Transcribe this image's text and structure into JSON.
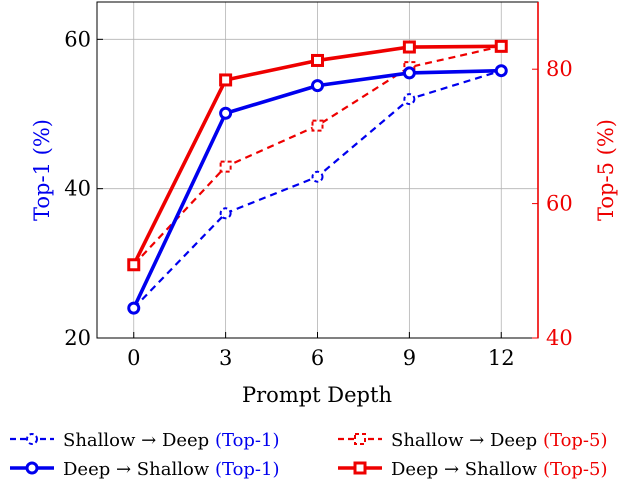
{
  "chart_data": {
    "type": "line",
    "xlabel": "Prompt Depth",
    "ylabel_left": {
      "prefix": "Top-1 ",
      "unit": "(%)"
    },
    "ylabel_right": {
      "prefix": "Top-5 ",
      "unit": "(%)"
    },
    "x": [
      0,
      3,
      6,
      9,
      12
    ],
    "x_ticks": [
      "0",
      "3",
      "6",
      "9",
      "12"
    ],
    "xlim": [
      -1.2,
      13.2
    ],
    "ylim_left": [
      20,
      65
    ],
    "ylim_right": [
      40,
      90
    ],
    "yticks_left": [
      20,
      40,
      60
    ],
    "yticks_right": [
      40,
      60,
      80
    ],
    "grid": true,
    "legend_placement": "bottom",
    "colors": {
      "top1": "#0000ee",
      "top5": "#ee0000",
      "grid": "#b3b3b3"
    },
    "series": [
      {
        "label": "Shallow → Deep",
        "metric": "(Top-1)",
        "axis": "left",
        "style": "dashed",
        "marker": "circle",
        "values": [
          24.0,
          36.7,
          41.6,
          52.0,
          55.8
        ]
      },
      {
        "label": "Shallow → Deep",
        "metric": "(Top-5)",
        "axis": "right",
        "style": "dashed",
        "marker": "square",
        "values": [
          50.9,
          65.5,
          71.6,
          80.3,
          83.4
        ]
      },
      {
        "label": "Deep → Shallow",
        "metric": "(Top-1)",
        "axis": "left",
        "style": "solid",
        "marker": "circle",
        "values": [
          24.0,
          50.1,
          53.8,
          55.5,
          55.8
        ]
      },
      {
        "label": "Deep → Shallow",
        "metric": "(Top-5)",
        "axis": "right",
        "style": "solid",
        "marker": "square",
        "values": [
          50.9,
          78.4,
          81.3,
          83.3,
          83.4
        ]
      }
    ]
  }
}
